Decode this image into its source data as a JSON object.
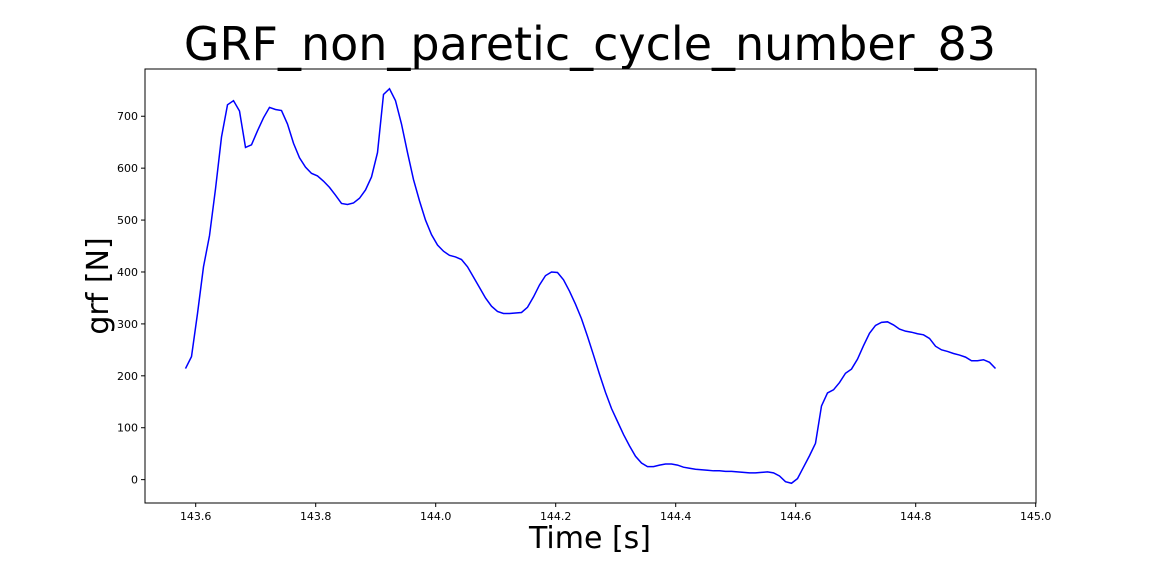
{
  "chart_data": {
    "type": "line",
    "title": "GRF_non_paretic_cycle_number_83",
    "x_label": "Time [s]",
    "y_label": "grf [N]",
    "xlim": [
      143.5155,
      145.0005
    ],
    "ylim": [
      -45,
      791
    ],
    "xticks": [
      143.6,
      143.8,
      {
        "value": 144.0,
        "label": "144.0"
      },
      144.2,
      144.4,
      144.6,
      144.8,
      {
        "value": 145.0,
        "label": "145.0"
      }
    ],
    "yticks": [
      0,
      100,
      200,
      300,
      400,
      500,
      600,
      700
    ],
    "grid": false,
    "series": [
      {
        "color": "#0000ff",
        "x": [
          143.583,
          143.593,
          143.603,
          143.613,
          143.623,
          143.633,
          143.643,
          143.653,
          143.663,
          143.673,
          143.683,
          143.693,
          143.703,
          143.713,
          143.723,
          143.733,
          143.743,
          143.753,
          143.763,
          143.773,
          143.783,
          143.793,
          143.803,
          143.813,
          143.823,
          143.833,
          143.843,
          143.853,
          143.863,
          143.873,
          143.883,
          143.893,
          143.903,
          143.913,
          143.923,
          143.933,
          143.943,
          143.953,
          143.963,
          143.973,
          143.983,
          143.993,
          144.003,
          144.013,
          144.023,
          144.033,
          144.043,
          144.053,
          144.063,
          144.073,
          144.083,
          144.093,
          144.103,
          144.113,
          144.123,
          144.133,
          144.143,
          144.153,
          144.163,
          144.173,
          144.183,
          144.193,
          144.203,
          144.213,
          144.223,
          144.233,
          144.243,
          144.253,
          144.263,
          144.273,
          144.283,
          144.293,
          144.303,
          144.313,
          144.323,
          144.333,
          144.343,
          144.353,
          144.363,
          144.373,
          144.383,
          144.393,
          144.403,
          144.413,
          144.423,
          144.433,
          144.443,
          144.453,
          144.463,
          144.473,
          144.483,
          144.493,
          144.503,
          144.513,
          144.523,
          144.533,
          144.543,
          144.553,
          144.563,
          144.573,
          144.583,
          144.593,
          144.603,
          144.613,
          144.623,
          144.633,
          144.643,
          144.653,
          144.663,
          144.673,
          144.683,
          144.693,
          144.703,
          144.713,
          144.723,
          144.733,
          144.743,
          144.753,
          144.763,
          144.773,
          144.783,
          144.793,
          144.803,
          144.813,
          144.823,
          144.833,
          144.843,
          144.853,
          144.863,
          144.873,
          144.883,
          144.893,
          144.903,
          144.913,
          144.923,
          144.933
        ],
        "values": [
          214,
          237,
          320,
          410,
          470,
          560,
          660,
          722,
          730,
          710,
          640,
          645,
          672,
          697,
          717,
          713,
          711,
          685,
          648,
          620,
          602,
          590,
          585,
          575,
          563,
          548,
          532,
          530,
          533,
          542,
          558,
          583,
          630,
          742,
          753,
          730,
          685,
          630,
          578,
          537,
          500,
          472,
          452,
          440,
          432,
          429,
          424,
          410,
          390,
          370,
          350,
          334,
          324,
          320,
          320,
          321,
          322,
          332,
          352,
          375,
          393,
          400,
          399,
          385,
          363,
          338,
          310,
          276,
          240,
          203,
          168,
          137,
          112,
          87,
          65,
          45,
          32,
          25,
          25,
          28,
          30,
          30,
          28,
          24,
          22,
          20,
          19,
          18,
          17,
          17,
          16,
          16,
          15,
          14,
          13,
          13,
          14,
          15,
          13,
          7,
          -4,
          -7,
          2,
          24,
          46,
          70,
          142,
          167,
          173,
          187,
          205,
          213,
          232,
          258,
          282,
          297,
          303,
          304,
          298,
          290,
          286,
          284,
          281,
          279,
          272,
          257,
          250,
          247,
          243,
          240,
          236,
          229,
          229,
          231,
          226,
          214
        ]
      }
    ]
  }
}
